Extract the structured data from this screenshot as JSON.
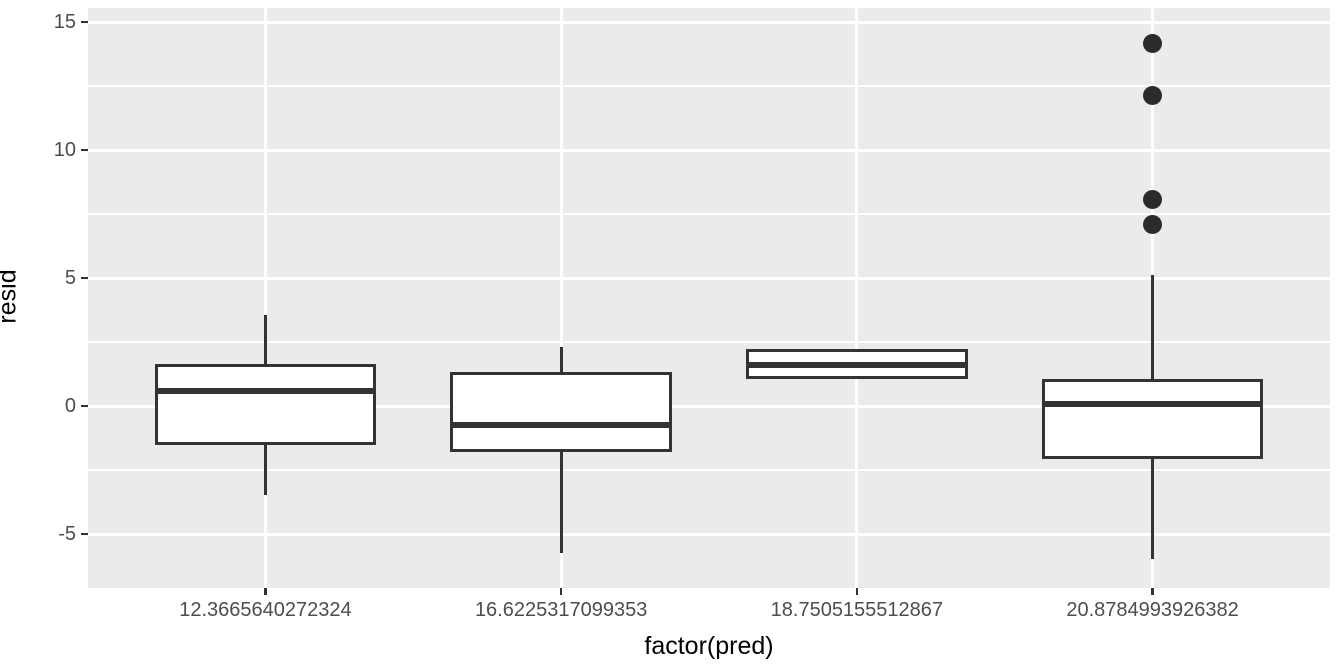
{
  "chart_data": {
    "type": "boxplot",
    "title": "",
    "xlabel": "factor(pred)",
    "ylabel": "resid",
    "x_categories": [
      "12.3665640272324",
      "16.6225317099353",
      "18.7505155512867",
      "20.8784993926382"
    ],
    "y_ticks": [
      15,
      10,
      5,
      0,
      -5
    ],
    "y_minor_ticks": [
      12.5,
      7.5,
      2.5,
      -2.5
    ],
    "ylim": [
      -7.1,
      15.55
    ],
    "grid": "on",
    "legend": "none",
    "boxes": [
      {
        "category": "12.3665640272324",
        "whisker_low": -3.45,
        "q1": -1.47,
        "median": 0.58,
        "q3": 1.57,
        "whisker_high": 3.57,
        "outliers": []
      },
      {
        "category": "16.6225317099353",
        "whisker_low": -5.72,
        "q1": -1.72,
        "median": -0.73,
        "q3": 1.27,
        "whisker_high": 2.32,
        "outliers": []
      },
      {
        "category": "18.7505155512867",
        "whisker_low": 1.12,
        "q1": 1.12,
        "median": 1.61,
        "q3": 2.17,
        "whisker_high": 2.17,
        "outliers": []
      },
      {
        "category": "20.8784993926382",
        "whisker_low": -5.98,
        "q1": -2.0,
        "median": 0.07,
        "q3": 1.0,
        "whisker_high": 5.14,
        "outliers": [
          7.08,
          8.09,
          12.13,
          14.17
        ]
      }
    ],
    "colors": {
      "panel_bg": "#EBEBEB",
      "grid_major": "#FFFFFF",
      "grid_minor": "#FFFFFF",
      "box_border": "#333333",
      "box_fill": "#FFFFFF",
      "median": "#333333",
      "whisker": "#333333",
      "outlier": "#2B2B2B",
      "tick_mark": "#333333",
      "tick_label": "#4D4D4D",
      "axis_title": "#000000"
    }
  }
}
